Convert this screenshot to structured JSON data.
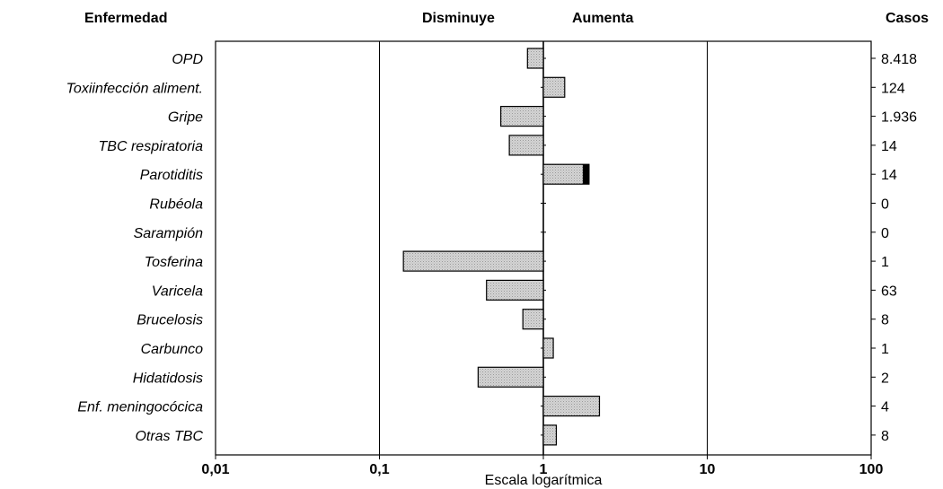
{
  "headers": {
    "disease": "Enfermedad",
    "decrease": "Disminuye",
    "increase": "Aumenta",
    "cases": "Casos"
  },
  "colors": {
    "bar_fill": "#d4d4d4",
    "bar_stroke": "#000000",
    "accent_segment": "#000000"
  },
  "chart_data": {
    "type": "bar",
    "orientation": "horizontal",
    "xscale": "log",
    "xlim": [
      0.01,
      100
    ],
    "xticks": [
      "0,01",
      "0,1",
      "1",
      "10",
      "100"
    ],
    "xtick_values": [
      0.01,
      0.1,
      1,
      10,
      100
    ],
    "xlabel": "Escala logarítmica",
    "baseline": 1,
    "grid": "vertical lines at 0.1 and 10",
    "categories": [
      "OPD",
      "Toxiinfección aliment.",
      "Gripe",
      "TBC respiratoria",
      "Parotiditis",
      "Rubéola",
      "Sarampión",
      "Tosferina",
      "Varicela",
      "Brucelosis",
      "Carbunco",
      "Hidatidosis",
      "Enf. meningocócica",
      "Otras TBC"
    ],
    "values": [
      0.8,
      1.35,
      0.55,
      0.62,
      1.9,
      null,
      null,
      0.14,
      0.45,
      0.75,
      1.15,
      0.4,
      2.2,
      1.2
    ],
    "cases": [
      "8.418",
      "124",
      "1.936",
      "14",
      "14",
      "0",
      "0",
      "1",
      "63",
      "8",
      "1",
      "2",
      "4",
      "8"
    ]
  }
}
